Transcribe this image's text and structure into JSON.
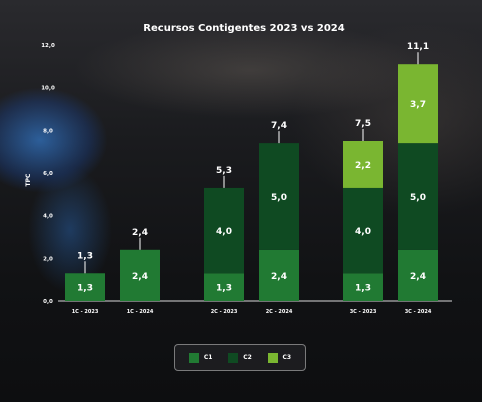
{
  "chart_data": {
    "type": "bar",
    "stacked": true,
    "title": "Recursos Contigentes 2023 vs 2024",
    "ylabel": "TPC",
    "xlabel": "",
    "ylim": [
      0,
      12
    ],
    "yticks": [
      "0,0",
      "2,0",
      "4,0",
      "6,0",
      "8,0",
      "10,0",
      "12,0"
    ],
    "categories": [
      "1C - 2023",
      "1C - 2024",
      "2C - 2023",
      "2C - 2024",
      "3C - 2023",
      "3C - 2024"
    ],
    "series": [
      {
        "name": "C1",
        "color": "#217a33",
        "values": [
          1.3,
          2.4,
          1.3,
          2.4,
          1.3,
          2.4
        ],
        "labels": [
          "1,3",
          "2,4",
          "1,3",
          "2,4",
          "1,3",
          "2,4"
        ]
      },
      {
        "name": "C2",
        "color": "#0f4a22",
        "values": [
          0,
          0,
          4.0,
          5.0,
          4.0,
          5.0
        ],
        "labels": [
          "",
          "",
          "4,0",
          "5,0",
          "4,0",
          "5,0"
        ]
      },
      {
        "name": "C3",
        "color": "#7ab631",
        "values": [
          0,
          0,
          0,
          0,
          2.2,
          3.7
        ],
        "labels": [
          "",
          "",
          "",
          "",
          "2,2",
          "3,7"
        ]
      }
    ],
    "totals": [
      1.3,
      2.4,
      5.3,
      7.4,
      7.5,
      11.1
    ],
    "total_labels": [
      "1,3",
      "2,4",
      "5,3",
      "7,4",
      "7,5",
      "11,1"
    ],
    "legend_position": "bottom",
    "grid": false
  }
}
